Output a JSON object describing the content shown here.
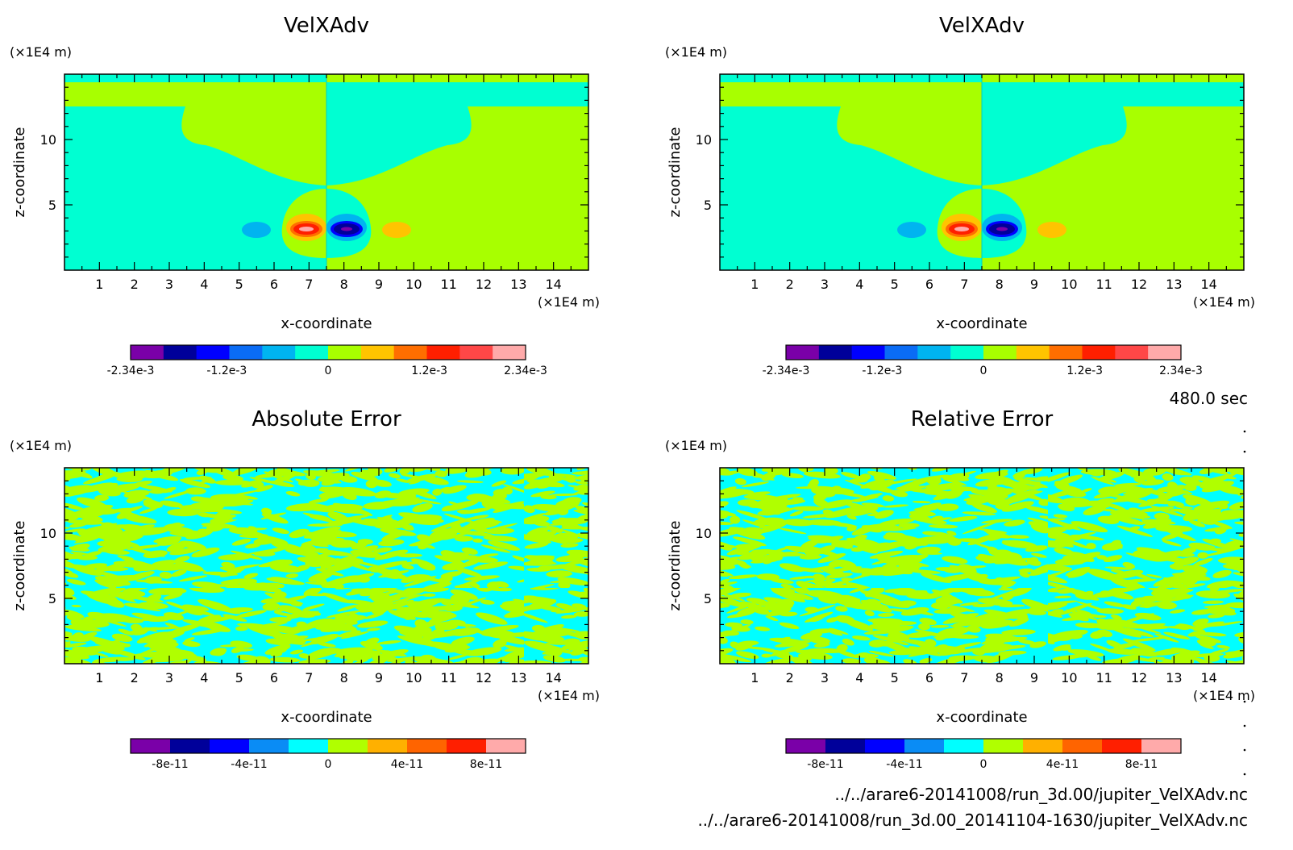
{
  "time_label": "480.0 sec",
  "files": [
    "../../arare6-20141008/run_3d.00/jupiter_VelXAdv.nc",
    "../../arare6-20141008/run_3d.00_20141104-1630/jupiter_VelXAdv.nc"
  ],
  "colors": {
    "velocity_levels": [
      "#7a00a8",
      "#00009a",
      "#0000ff",
      "#0a6cf5",
      "#00b4f0",
      "#00ffd2",
      "#a8ff00",
      "#ffc400",
      "#ff6e00",
      "#ff1f00",
      "#ff4747",
      "#ffaaaa"
    ],
    "error_levels": [
      "#7a00a8",
      "#00009a",
      "#0000ff",
      "#0a8cf5",
      "#00ffff",
      "#b0ff00",
      "#ffb000",
      "#ff6400",
      "#ff1f00",
      "#ffaaaa"
    ]
  },
  "chart_data": [
    {
      "type": "heatmap",
      "title": "VelXAdv",
      "xlabel": "x-coordinate",
      "ylabel": "z-coordinate",
      "x_unit": "(×1E4 m)",
      "y_unit": "(×1E4 m)",
      "xlim": [
        0,
        15
      ],
      "ylim": [
        0,
        15
      ],
      "xticks": [
        "1",
        "2",
        "3",
        "4",
        "5",
        "6",
        "7",
        "8",
        "9",
        "10",
        "11",
        "12",
        "13",
        "14"
      ],
      "yticks": [
        "5",
        "10"
      ],
      "colorbar": {
        "ticks": [
          "-2.34e-3",
          "-1.2e-3",
          "0",
          "1.2e-3",
          "2.34e-3"
        ],
        "range": [
          -0.00234,
          0.00234
        ]
      },
      "field": "velocity"
    },
    {
      "type": "heatmap",
      "title": "VelXAdv",
      "xlabel": "x-coordinate",
      "ylabel": "z-coordinate",
      "x_unit": "(×1E4 m)",
      "y_unit": "(×1E4 m)",
      "xlim": [
        0,
        15
      ],
      "ylim": [
        0,
        15
      ],
      "xticks": [
        "1",
        "2",
        "3",
        "4",
        "5",
        "6",
        "7",
        "8",
        "9",
        "10",
        "11",
        "12",
        "13",
        "14"
      ],
      "yticks": [
        "5",
        "10"
      ],
      "colorbar": {
        "ticks": [
          "-2.34e-3",
          "-1.2e-3",
          "0",
          "1.2e-3",
          "2.34e-3"
        ],
        "range": [
          -0.00234,
          0.00234
        ]
      },
      "field": "velocity"
    },
    {
      "type": "heatmap",
      "title": "Absolute Error",
      "xlabel": "x-coordinate",
      "ylabel": "z-coordinate",
      "x_unit": "(×1E4 m)",
      "y_unit": "(×1E4 m)",
      "xlim": [
        0,
        15
      ],
      "ylim": [
        0,
        15
      ],
      "xticks": [
        "1",
        "2",
        "3",
        "4",
        "5",
        "6",
        "7",
        "8",
        "9",
        "10",
        "11",
        "12",
        "13",
        "14"
      ],
      "yticks": [
        "5",
        "10"
      ],
      "colorbar": {
        "ticks": [
          "-8e-11",
          "-4e-11",
          "0",
          "4e-11",
          "8e-11"
        ],
        "range": [
          -1e-10,
          1e-10
        ]
      },
      "field": "noise"
    },
    {
      "type": "heatmap",
      "title": "Relative Error",
      "xlabel": "x-coordinate",
      "ylabel": "z-coordinate",
      "x_unit": "(×1E4 m)",
      "y_unit": "(×1E4 m)",
      "xlim": [
        0,
        15
      ],
      "ylim": [
        0,
        15
      ],
      "xticks": [
        "1",
        "2",
        "3",
        "4",
        "5",
        "6",
        "7",
        "8",
        "9",
        "10",
        "11",
        "12",
        "13",
        "14"
      ],
      "yticks": [
        "5",
        "10"
      ],
      "colorbar": {
        "ticks": [
          "-8e-11",
          "-4e-11",
          "0",
          "4e-11",
          "8e-11"
        ],
        "range": [
          -1e-10,
          1e-10
        ]
      },
      "field": "noise"
    }
  ]
}
